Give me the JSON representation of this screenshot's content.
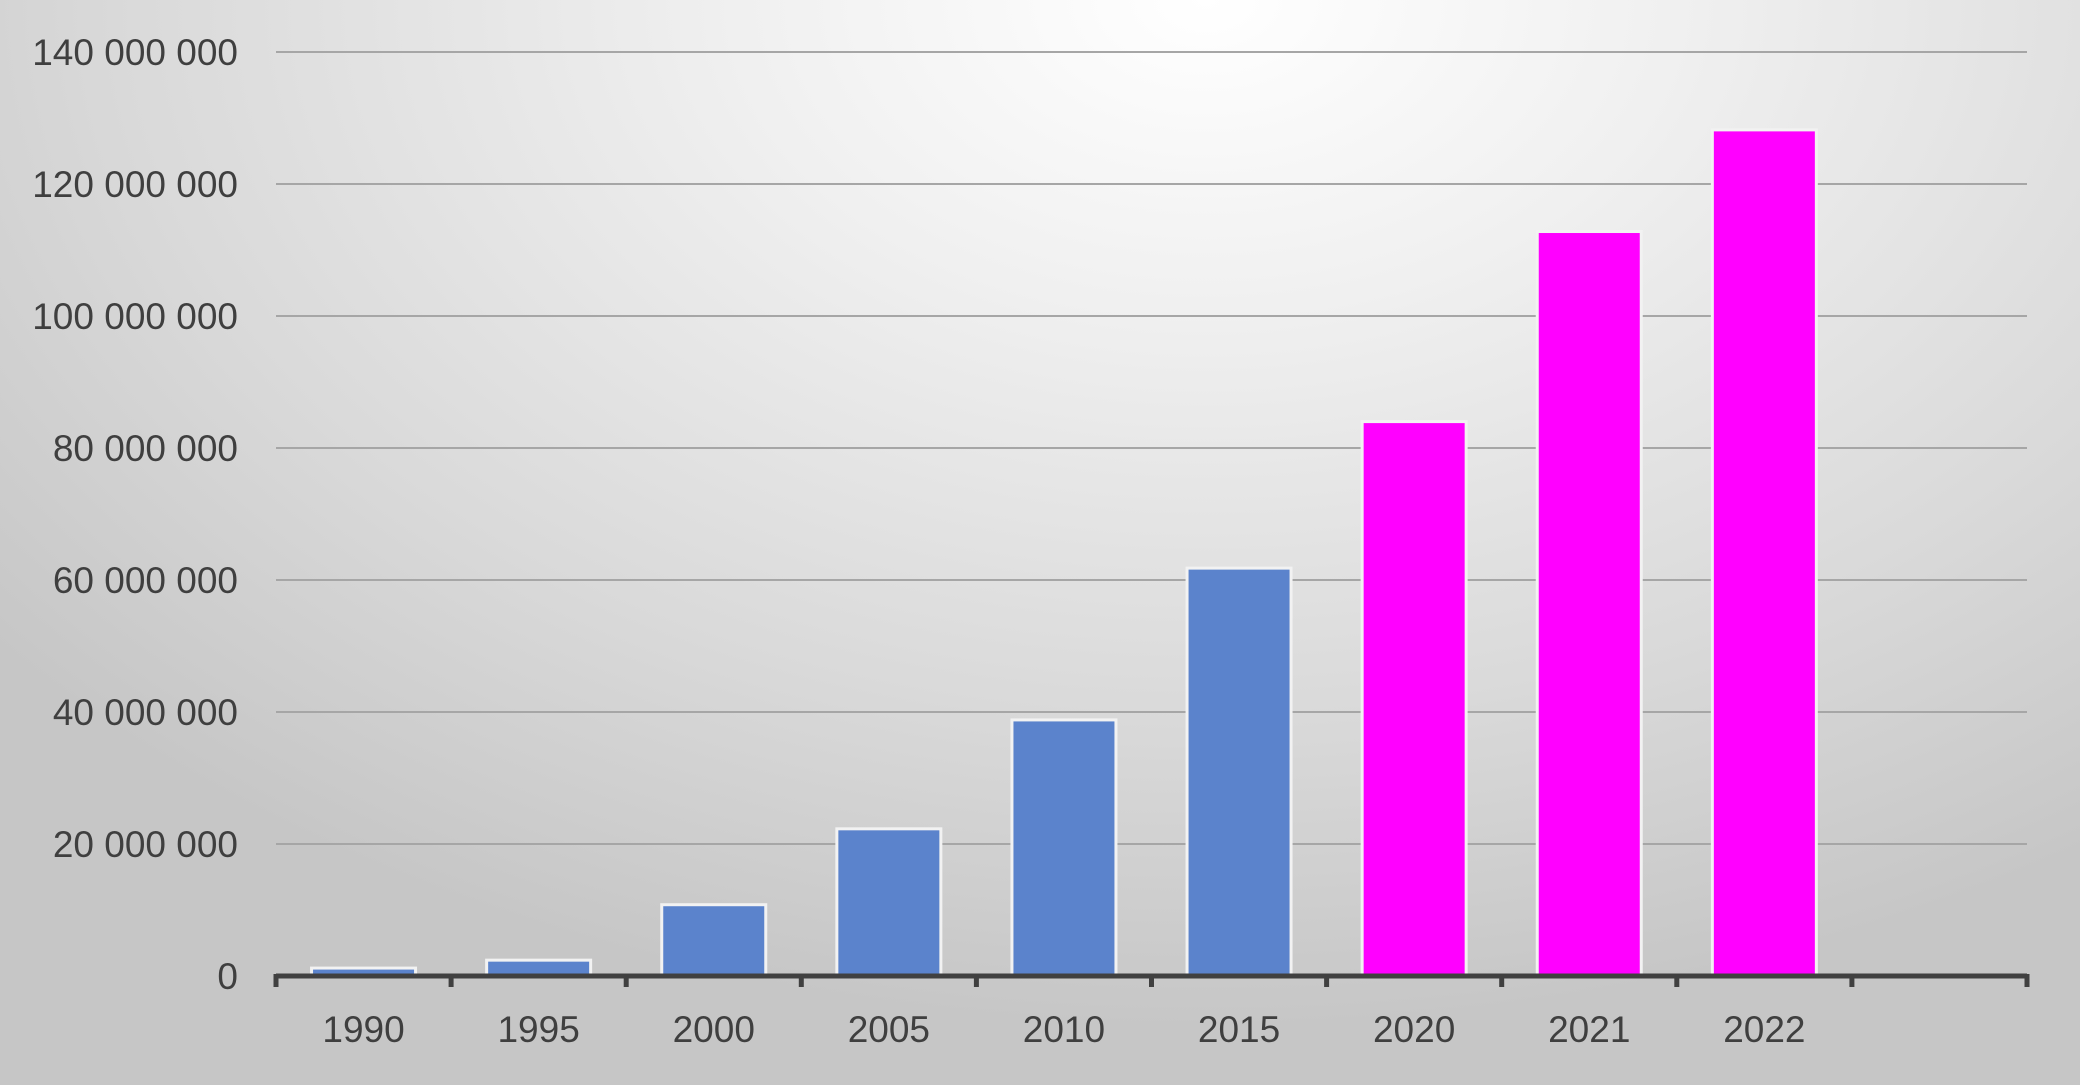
{
  "chart_data": {
    "type": "bar",
    "categories": [
      "1990",
      "1995",
      "2000",
      "2005",
      "2010",
      "2015",
      "2020",
      "2021",
      "2022"
    ],
    "values": [
      1200000,
      2400000,
      10800000,
      22300000,
      38800000,
      61800000,
      84000000,
      112800000,
      128200000
    ],
    "bar_colors": [
      "#5b83cc",
      "#5b83cc",
      "#5b83cc",
      "#5b83cc",
      "#5b83cc",
      "#5b83cc",
      "#ff00ff",
      "#ff00ff",
      "#ff00ff"
    ],
    "ylim": [
      0,
      140000000
    ],
    "yticks": [
      0,
      20000000,
      40000000,
      60000000,
      80000000,
      100000000,
      120000000,
      140000000
    ],
    "ytick_labels": [
      "0",
      "20 000 000",
      "40 000 000",
      "60 000 000",
      "80 000 000",
      "100 000 000",
      "120 000 000",
      "140 000 000"
    ],
    "grid": true,
    "legend": "none"
  }
}
